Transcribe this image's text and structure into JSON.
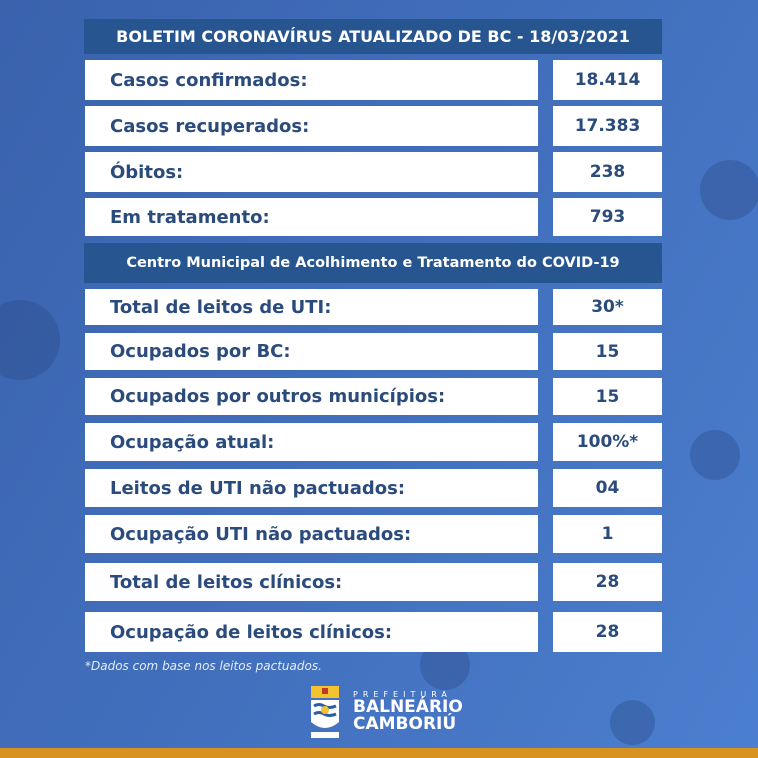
{
  "title": "BOLETIM CORONAVÍRUS ATUALIZADO DE BC - 18/03/2021",
  "cases": [
    {
      "label": "Casos confirmados:",
      "value": "18.414"
    },
    {
      "label": "Casos recuperados:",
      "value": "17.383"
    },
    {
      "label": "Óbitos:",
      "value": "238"
    },
    {
      "label": "Em tratamento:",
      "value": "793"
    }
  ],
  "section_title": "Centro Municipal de Acolhimento e Tratamento do COVID-19",
  "beds": [
    {
      "label": "Total de leitos de UTI:",
      "value": "30*"
    },
    {
      "label": "Ocupados por BC:",
      "value": "15"
    },
    {
      "label": "Ocupados por outros municípios:",
      "value": "15"
    },
    {
      "label": "Ocupação atual:",
      "value": "100%*"
    },
    {
      "label": "Leitos de UTI não pactuados:",
      "value": "04"
    },
    {
      "label": "Ocupação UTI não pactuados:",
      "value": "1"
    },
    {
      "label": "Total de leitos clínicos:",
      "value": "28"
    },
    {
      "label": "Ocupação de leitos clínicos:",
      "value": "28"
    }
  ],
  "footnote": "*Dados com base nos leitos pactuados.",
  "logo": {
    "line1": "PREFEITURA",
    "line2": "BALNEÁRIO",
    "line3": "CAMBORIÚ"
  },
  "colors": {
    "background": "#4372c0",
    "header": "#27558f",
    "text": "#2a4b7c",
    "accent_bar": "#d8921f"
  }
}
